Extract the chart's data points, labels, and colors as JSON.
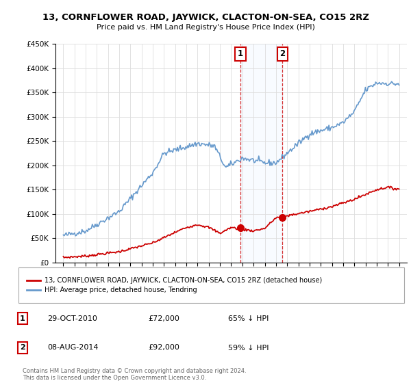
{
  "title": "13, CORNFLOWER ROAD, JAYWICK, CLACTON-ON-SEA, CO15 2RZ",
  "subtitle": "Price paid vs. HM Land Registry's House Price Index (HPI)",
  "legend_label_red": "13, CORNFLOWER ROAD, JAYWICK, CLACTON-ON-SEA, CO15 2RZ (detached house)",
  "legend_label_blue": "HPI: Average price, detached house, Tendring",
  "transaction_1_date": "29-OCT-2010",
  "transaction_1_price": "£72,000",
  "transaction_1_hpi": "65% ↓ HPI",
  "transaction_2_date": "08-AUG-2014",
  "transaction_2_price": "£92,000",
  "transaction_2_hpi": "59% ↓ HPI",
  "copyright_text": "Contains HM Land Registry data © Crown copyright and database right 2024.\nThis data is licensed under the Open Government Licence v3.0.",
  "red_color": "#cc0000",
  "blue_color": "#6699cc",
  "shading_color": "#ddeeff",
  "ylim_min": 0,
  "ylim_max": 450000,
  "hpi_keypoints_year": [
    1995,
    1997,
    2000,
    2003,
    2004,
    2007,
    2008.5,
    2009.5,
    2011,
    2013,
    2014,
    2016,
    2017,
    2019,
    2020,
    2021,
    2022,
    2023,
    2024.5
  ],
  "hpi_keypoints_val": [
    55000,
    65000,
    105000,
    185000,
    225000,
    245000,
    240000,
    195000,
    215000,
    205000,
    205000,
    245000,
    265000,
    278000,
    288000,
    310000,
    355000,
    370000,
    368000
  ],
  "red_keypoints_year": [
    1995,
    1997,
    2000,
    2003,
    2005,
    2006,
    2007,
    2008,
    2009,
    2010,
    2011,
    2012,
    2013,
    2014,
    2015,
    2017,
    2019,
    2021,
    2022,
    2023,
    2024,
    2024.5
  ],
  "red_keypoints_val": [
    10000,
    13000,
    22000,
    40000,
    62000,
    72000,
    78000,
    72000,
    60000,
    72000,
    68000,
    65000,
    70000,
    92000,
    96000,
    105000,
    115000,
    130000,
    140000,
    150000,
    155000,
    152000
  ],
  "trans1_year": 2010.83,
  "trans1_val": 72000,
  "trans2_year": 2014.58,
  "trans2_val": 92000,
  "xlim_min": 1994.3,
  "xlim_max": 2025.7
}
